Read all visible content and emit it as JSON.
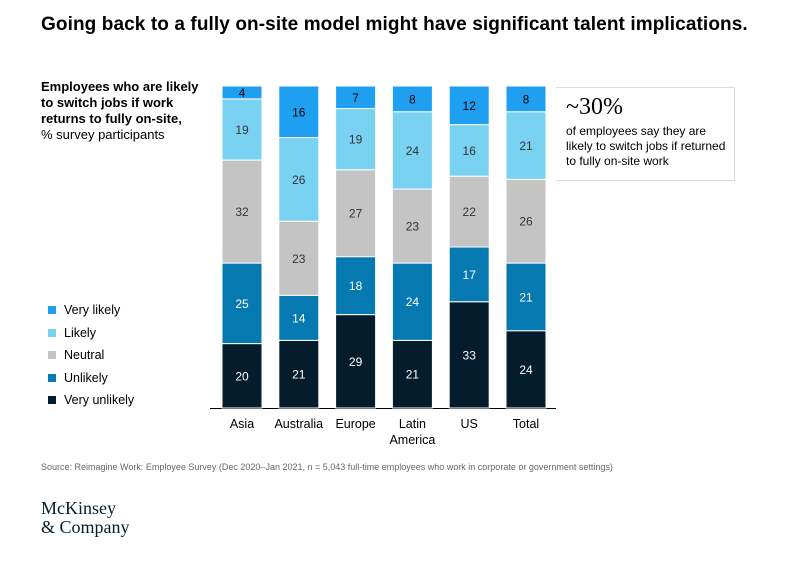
{
  "headline": "Going back to a fully on-site model might have significant talent implications.",
  "subtitle": {
    "bold": "Employees who are likely to switch jobs if work returns to fully on-site,",
    "unit": "% survey participants"
  },
  "callout": {
    "big": "~30%",
    "text": "of employees say they are likely to switch jobs if returned to fully on-site work"
  },
  "source": "Source: Reimagine Work: Employee Survey (Dec 2020–Jan 2021, n = 5,043 full-time employees who work in corporate or government settings)",
  "logo": {
    "line1": "McKinsey",
    "line2": "& Company"
  },
  "chart_data": {
    "type": "bar",
    "stacked": true,
    "categories": [
      [
        "Asia"
      ],
      [
        "Australia"
      ],
      [
        "Europe"
      ],
      [
        "Latin",
        "America"
      ],
      [
        "US"
      ],
      [
        "Total"
      ]
    ],
    "series": [
      {
        "name": "Very unlikely",
        "color": "#051c2c",
        "values": [
          20,
          21,
          29,
          21,
          33,
          24
        ]
      },
      {
        "name": "Unlikely",
        "color": "#0679b0",
        "values": [
          25,
          14,
          18,
          24,
          17,
          21
        ]
      },
      {
        "name": "Neutral",
        "color": "#c4c4c4",
        "values": [
          32,
          23,
          27,
          23,
          22,
          26
        ]
      },
      {
        "name": "Likely",
        "color": "#79d2f1",
        "values": [
          19,
          26,
          19,
          24,
          16,
          21
        ]
      },
      {
        "name": "Very likely",
        "color": "#1f9ff0",
        "values": [
          4,
          16,
          7,
          8,
          12,
          8
        ]
      }
    ],
    "legend_order": [
      "Very likely",
      "Likely",
      "Neutral",
      "Unlikely",
      "Very unlikely"
    ],
    "label_colors": {
      "Very unlikely": "#ffffff",
      "Unlikely": "#ffffff",
      "Neutral": "#333333",
      "Likely": "#333333",
      "Very likely": "#000000"
    }
  }
}
